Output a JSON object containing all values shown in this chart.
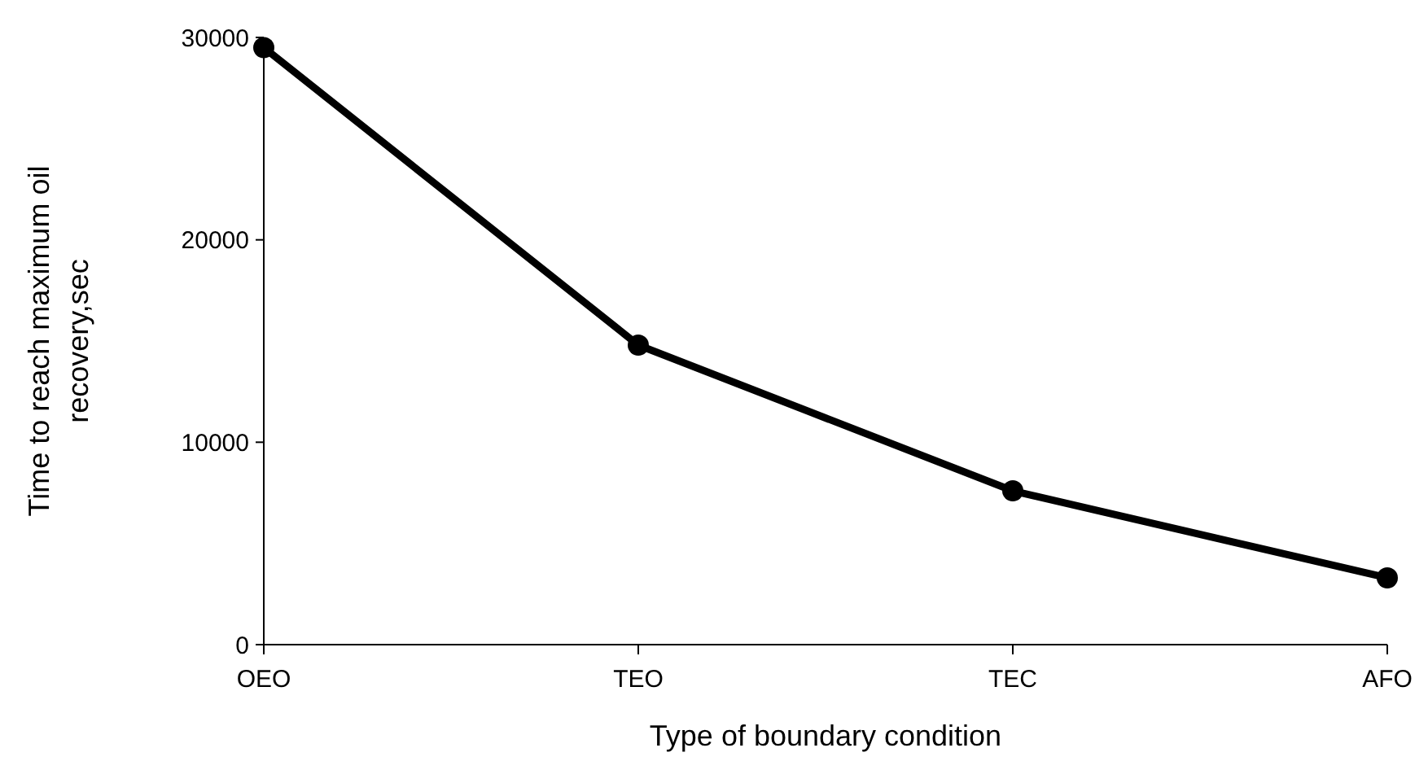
{
  "chart_data": {
    "type": "line",
    "xlabel": "Type of boundary condition",
    "ylabel": "Time to reach maximum oil recovery,sec",
    "categories": [
      "OEO",
      "TEO",
      "TEC",
      "AFO"
    ],
    "series": [
      {
        "color": "#000000",
        "values": [
          29500,
          14800,
          7600,
          3300
        ]
      }
    ],
    "ylim": [
      0,
      30000
    ],
    "yticks": [
      0,
      10000,
      20000,
      30000
    ],
    "grid": false,
    "marker": "circle",
    "line_style": "solid"
  }
}
